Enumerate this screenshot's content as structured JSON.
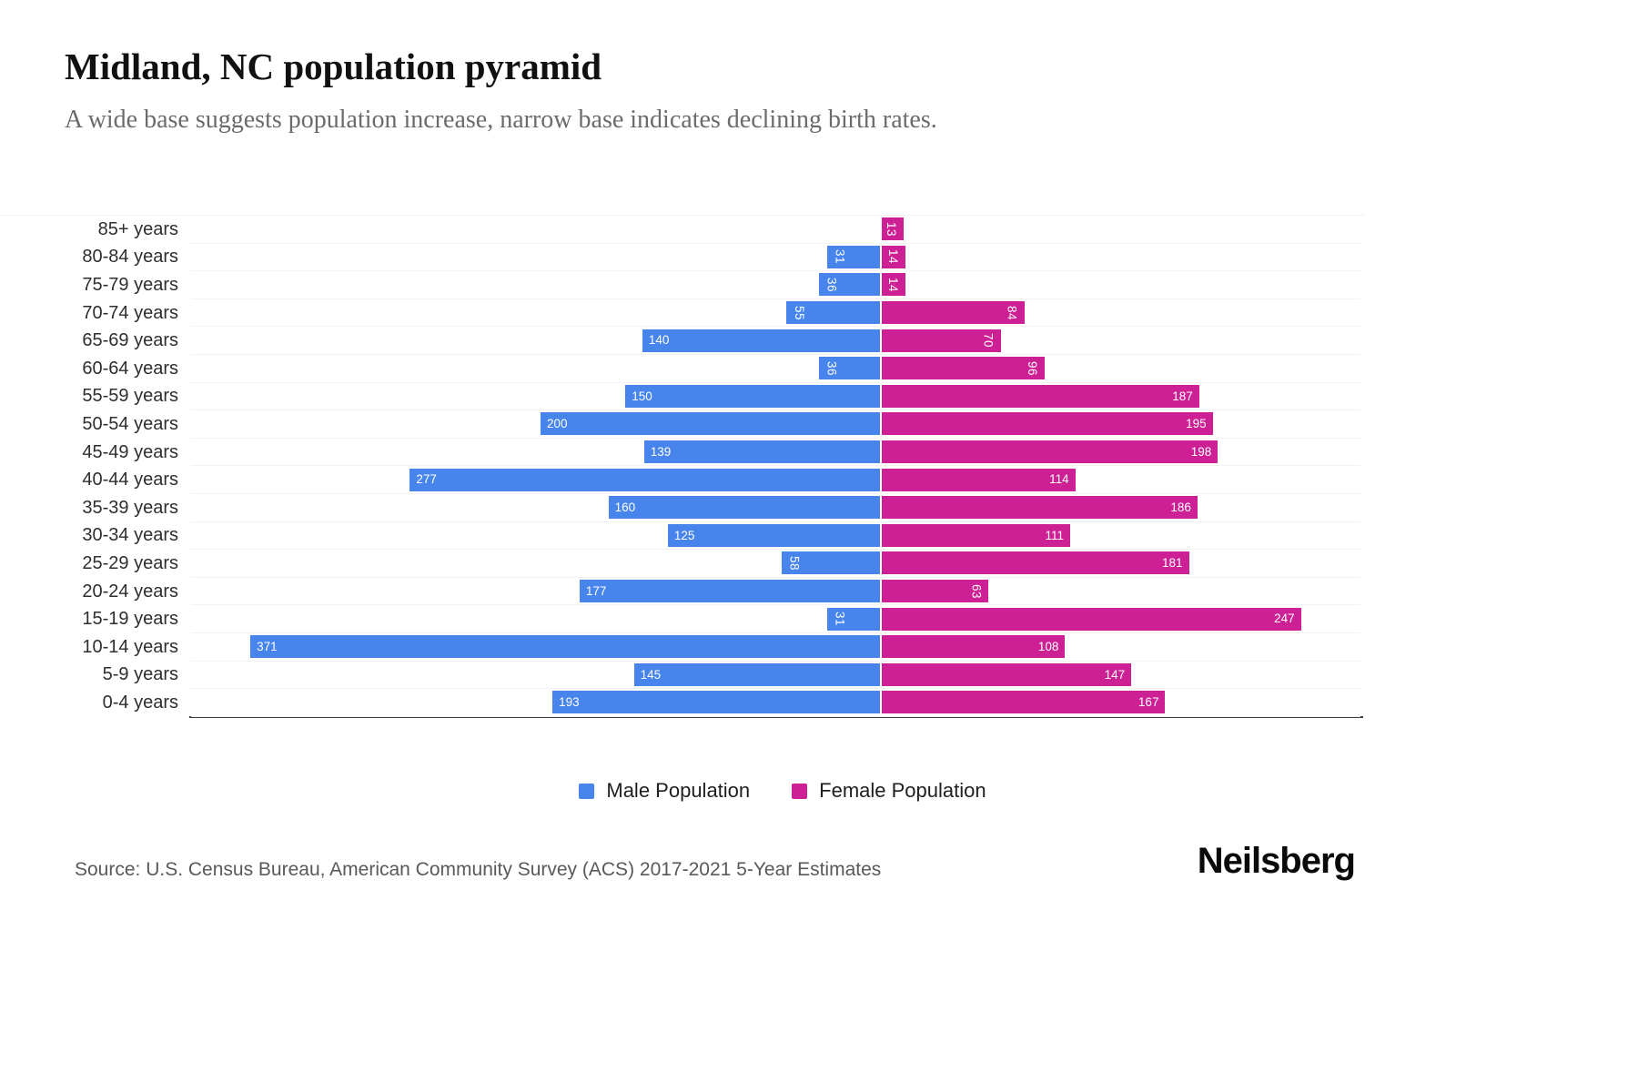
{
  "page": {
    "background": "#ffffff"
  },
  "chart_data": {
    "type": "bar",
    "variant": "population_pyramid_horizontal",
    "title": "Midland, NC population pyramid",
    "subtitle": "A wide base suggests population increase, narrow base indicates declining birth rates.",
    "categories": [
      "85+ years",
      "80-84 years",
      "75-79 years",
      "70-74 years",
      "65-69 years",
      "60-64 years",
      "55-59 years",
      "50-54 years",
      "45-49 years",
      "40-44 years",
      "35-39 years",
      "30-34 years",
      "25-29 years",
      "20-24 years",
      "15-19 years",
      "10-14 years",
      "5-9 years",
      "0-4 years"
    ],
    "series": [
      {
        "name": "Male Population",
        "color": "#4784ec",
        "values": [
          0,
          31,
          36,
          55,
          140,
          36,
          150,
          200,
          139,
          277,
          160,
          125,
          58,
          177,
          31,
          371,
          145,
          193
        ]
      },
      {
        "name": "Female Population",
        "color": "#ce2095",
        "values": [
          13,
          14,
          14,
          84,
          70,
          96,
          187,
          195,
          198,
          114,
          186,
          111,
          181,
          63,
          247,
          108,
          147,
          167
        ]
      }
    ],
    "legend_position": "bottom",
    "grid": "horizontal-light",
    "value_label_style": "white, inside far end of bar, rotated vertically when value < 100",
    "source": "Source: U.S. Census Bureau, American Community Survey (ACS) 2017-2021 5-Year Estimates",
    "brand": "Neilsberg"
  }
}
